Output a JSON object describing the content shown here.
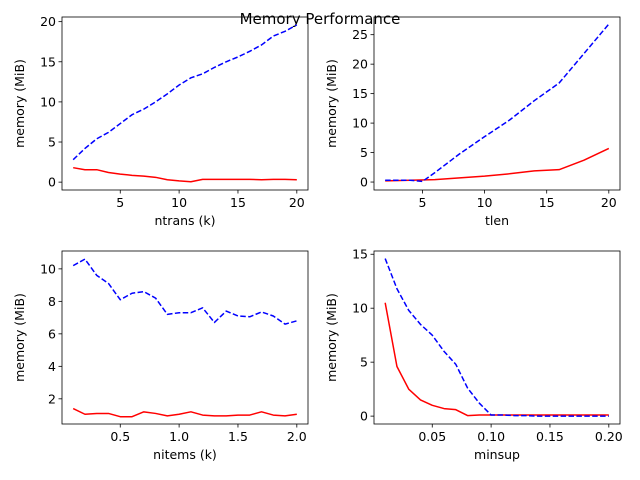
{
  "figure": {
    "title": "Memory Performance"
  },
  "colors": {
    "solid": "#ff0000",
    "dashed": "#0000ff",
    "axes": "#000000"
  },
  "chart_data": [
    {
      "type": "line",
      "title": "",
      "xlabel": "ntrans (k)",
      "ylabel": "memory (MiB)",
      "xlim": [
        0.05,
        20.95
      ],
      "ylim": [
        -0.98,
        20.58
      ],
      "xticks": [
        5,
        10,
        15,
        20
      ],
      "yticks": [
        0,
        5,
        10,
        15,
        20
      ],
      "tick_labels_x": [
        "5",
        "10",
        "15",
        "20"
      ],
      "tick_labels_y": [
        "0",
        "5",
        "10",
        "15",
        "20"
      ],
      "series": [
        {
          "name": "",
          "style": "solid",
          "color": "#ff0000",
          "x": [
            1,
            2,
            3,
            4,
            5,
            6,
            7,
            8,
            9,
            10,
            11,
            12,
            13,
            14,
            15,
            16,
            17,
            18,
            19,
            20
          ],
          "y": [
            1.8,
            1.55,
            1.55,
            1.2,
            1.0,
            0.85,
            0.75,
            0.6,
            0.3,
            0.15,
            0.05,
            0.35,
            0.35,
            0.35,
            0.35,
            0.35,
            0.3,
            0.35,
            0.35,
            0.3
          ]
        },
        {
          "name": "",
          "style": "dashed",
          "color": "#0000ff",
          "x": [
            1,
            2,
            3,
            4,
            5,
            6,
            7,
            8,
            9,
            10,
            11,
            12,
            13,
            14,
            15,
            16,
            17,
            18,
            19,
            20
          ],
          "y": [
            2.8,
            4.2,
            5.4,
            6.2,
            7.3,
            8.4,
            9.1,
            10.0,
            11.0,
            12.1,
            13.0,
            13.5,
            14.3,
            15.0,
            15.6,
            16.3,
            17.1,
            18.2,
            18.8,
            19.6
          ]
        }
      ]
    },
    {
      "type": "line",
      "title": "",
      "xlabel": "tlen",
      "ylabel": "memory (MiB)",
      "xlim": [
        1.1,
        20.9
      ],
      "ylim": [
        -1.35,
        28.0
      ],
      "xticks": [
        5,
        10,
        15,
        20
      ],
      "yticks": [
        0,
        5,
        10,
        15,
        20,
        25
      ],
      "tick_labels_x": [
        "5",
        "10",
        "15",
        "20"
      ],
      "tick_labels_y": [
        "0",
        "5",
        "10",
        "15",
        "20",
        "25"
      ],
      "series": [
        {
          "name": "",
          "style": "solid",
          "color": "#ff0000",
          "x": [
            2,
            4,
            6,
            8,
            10,
            12,
            14,
            16,
            18,
            20
          ],
          "y": [
            0.2,
            0.3,
            0.4,
            0.7,
            1.0,
            1.4,
            1.9,
            2.1,
            3.7,
            5.7
          ]
        },
        {
          "name": "",
          "style": "dashed",
          "color": "#0000ff",
          "x": [
            2,
            4,
            5,
            6,
            8,
            10,
            12,
            14,
            16,
            18,
            20
          ],
          "y": [
            0.3,
            0.3,
            0.1,
            1.6,
            4.8,
            7.7,
            10.5,
            13.8,
            16.8,
            21.8,
            26.8
          ]
        }
      ]
    },
    {
      "type": "line",
      "title": "",
      "xlabel": "nitems (k)",
      "ylabel": "memory (MiB)",
      "xlim": [
        0.005,
        2.095
      ],
      "ylim": [
        0.45,
        11.1
      ],
      "xticks": [
        0.5,
        1.0,
        1.5,
        2.0
      ],
      "yticks": [
        2,
        4,
        6,
        8,
        10
      ],
      "tick_labels_x": [
        "0.5",
        "1.0",
        "1.5",
        "2.0"
      ],
      "tick_labels_y": [
        "2",
        "4",
        "6",
        "8",
        "10"
      ],
      "series": [
        {
          "name": "",
          "style": "solid",
          "color": "#ff0000",
          "x": [
            0.1,
            0.2,
            0.3,
            0.4,
            0.5,
            0.6,
            0.7,
            0.8,
            0.9,
            1.0,
            1.1,
            1.2,
            1.3,
            1.4,
            1.5,
            1.6,
            1.7,
            1.8,
            1.9,
            2.0
          ],
          "y": [
            1.4,
            1.05,
            1.1,
            1.1,
            0.9,
            0.9,
            1.2,
            1.1,
            0.95,
            1.05,
            1.2,
            1.0,
            0.95,
            0.95,
            1.0,
            1.0,
            1.2,
            1.0,
            0.95,
            1.05
          ]
        },
        {
          "name": "",
          "style": "dashed",
          "color": "#0000ff",
          "x": [
            0.1,
            0.2,
            0.3,
            0.4,
            0.5,
            0.6,
            0.7,
            0.8,
            0.9,
            1.0,
            1.1,
            1.2,
            1.3,
            1.4,
            1.5,
            1.6,
            1.7,
            1.8,
            1.9,
            2.0
          ],
          "y": [
            10.2,
            10.6,
            9.6,
            9.1,
            8.1,
            8.5,
            8.6,
            8.2,
            7.2,
            7.3,
            7.3,
            7.6,
            6.7,
            7.4,
            7.1,
            7.05,
            7.35,
            7.1,
            6.6,
            6.8
          ]
        }
      ]
    },
    {
      "type": "line",
      "title": "",
      "xlabel": "minsup",
      "ylabel": "memory (MiB)",
      "xlim": [
        0.0005,
        0.2095
      ],
      "ylim": [
        -0.73,
        15.3
      ],
      "xticks": [
        0.05,
        0.1,
        0.15,
        0.2
      ],
      "yticks": [
        0,
        5,
        10,
        15
      ],
      "tick_labels_x": [
        "0.05",
        "0.10",
        "0.15",
        "0.20"
      ],
      "tick_labels_y": [
        "0",
        "5",
        "10",
        "15"
      ],
      "series": [
        {
          "name": "",
          "style": "solid",
          "color": "#ff0000",
          "x": [
            0.01,
            0.02,
            0.03,
            0.04,
            0.05,
            0.06,
            0.07,
            0.08,
            0.09,
            0.1,
            0.11,
            0.12,
            0.13,
            0.14,
            0.15,
            0.16,
            0.17,
            0.18,
            0.19,
            0.2
          ],
          "y": [
            10.5,
            4.6,
            2.5,
            1.5,
            1.0,
            0.7,
            0.6,
            0.05,
            0.1,
            0.1,
            0.1,
            0.1,
            0.1,
            0.1,
            0.1,
            0.1,
            0.1,
            0.1,
            0.1,
            0.1
          ]
        },
        {
          "name": "",
          "style": "dashed",
          "color": "#0000ff",
          "x": [
            0.01,
            0.02,
            0.03,
            0.04,
            0.05,
            0.06,
            0.07,
            0.08,
            0.09,
            0.1,
            0.11,
            0.12,
            0.13,
            0.14,
            0.15,
            0.16,
            0.17,
            0.18,
            0.19,
            0.2
          ],
          "y": [
            14.6,
            11.8,
            9.8,
            8.5,
            7.5,
            6.0,
            4.8,
            2.6,
            1.2,
            0.1,
            0.1,
            0.05,
            0.05,
            0.0,
            0.0,
            0.0,
            0.0,
            0.0,
            0.0,
            0.0
          ]
        }
      ]
    }
  ]
}
